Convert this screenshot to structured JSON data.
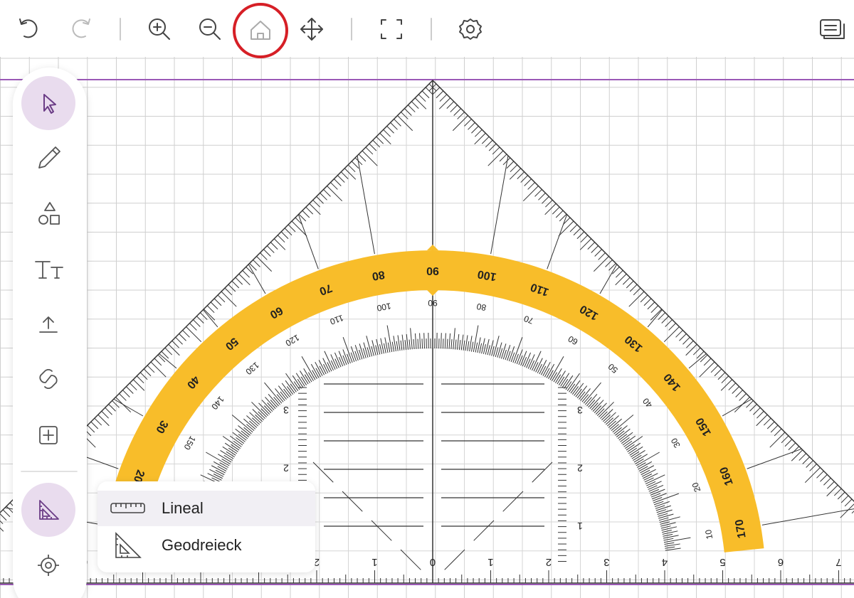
{
  "menu": {
    "items": [
      "Lineal",
      "Geodreieck"
    ]
  },
  "geodreieck": {
    "outer_scale": [
      20,
      30,
      40,
      50,
      60,
      70,
      80,
      90,
      100,
      110,
      120,
      130,
      140,
      150,
      160,
      170
    ],
    "inner_scale": [
      10,
      20,
      30,
      40,
      50,
      60,
      70,
      80,
      90,
      100,
      110,
      120,
      130,
      140,
      150
    ],
    "ruler_scale": [
      0,
      1,
      2,
      3,
      4,
      5,
      6,
      7
    ],
    "height_scale": [
      1,
      2,
      3
    ]
  }
}
